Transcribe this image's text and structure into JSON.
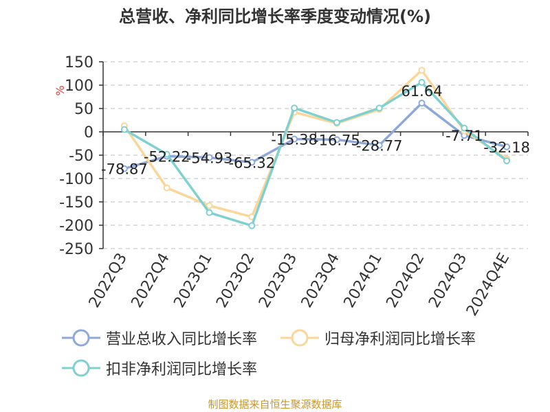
{
  "chart_data": {
    "type": "line",
    "title": "总营收、净利同比增长率季度变动情况(%)",
    "ylabel": "%",
    "xlabel": "",
    "ylim": [
      -250,
      150
    ],
    "yticks": [
      150,
      100,
      50,
      0,
      -50,
      -100,
      -150,
      -200,
      -250
    ],
    "categories": [
      "2022Q3",
      "2022Q4",
      "2023Q1",
      "2023Q2",
      "2023Q3",
      "2023Q4",
      "2024Q1",
      "2024Q2",
      "2024Q3",
      "2024Q4E"
    ],
    "grid": true,
    "legend": "bottom",
    "series": [
      {
        "name": "营业总收入同比增长率",
        "color": "#8ea9d8",
        "values": [
          -78.87,
          -52.22,
          -54.93,
          -65.32,
          -15.38,
          -16.75,
          -28.77,
          61.64,
          -7.71,
          -32.18
        ],
        "labels": [
          "-78.87",
          "-52.22",
          "-54.93",
          "-65.32",
          "-15.38",
          "-16.75",
          "-28.77",
          "61.64",
          "-7.71",
          "-32.18"
        ]
      },
      {
        "name": "归母净利润同比增长率",
        "color": "#fbd699",
        "values": [
          13,
          -120,
          -158,
          -182,
          42,
          18,
          48,
          132,
          2,
          -58
        ]
      },
      {
        "name": "扣非净利润同比增长率",
        "color": "#7fd0d0",
        "values": [
          5,
          -48,
          -173,
          -201,
          51,
          20,
          51,
          106,
          8,
          -62
        ]
      }
    ]
  },
  "source_note": "制图数据来自恒生聚源数据库"
}
